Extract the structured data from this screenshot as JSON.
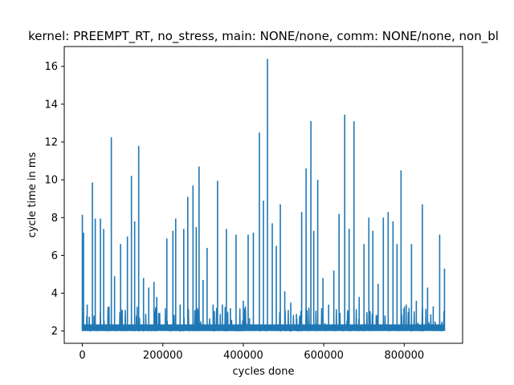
{
  "chart_data": {
    "type": "line",
    "title": "kernel: PREEMPT_RT, no_stress, main: NONE/none, comm: NONE/none, non_bl",
    "xlabel": "cycles done",
    "ylabel": "cycle time in ms",
    "xlim": [
      -45000,
      945000
    ],
    "ylim": [
      1.35,
      17.05
    ],
    "xticks": [
      0,
      200000,
      400000,
      600000,
      800000
    ],
    "xtick_labels": [
      "0",
      "200000",
      "400000",
      "600000",
      "800000"
    ],
    "yticks": [
      2,
      4,
      6,
      8,
      10,
      12,
      14,
      16
    ],
    "ytick_labels": [
      "2",
      "4",
      "6",
      "8",
      "10",
      "12",
      "14",
      "16"
    ],
    "grid": false,
    "series_color": "#1f77b4",
    "series": [
      {
        "name": "cycle time",
        "baseline": 2.0,
        "x_range": [
          0,
          900000
        ],
        "spikes": [
          {
            "x": 0,
            "y": 8.15
          },
          {
            "x": 3000,
            "y": 7.2
          },
          {
            "x": 12000,
            "y": 3.4
          },
          {
            "x": 25000,
            "y": 9.85
          },
          {
            "x": 32000,
            "y": 7.95
          },
          {
            "x": 45000,
            "y": 7.95
          },
          {
            "x": 53000,
            "y": 7.4
          },
          {
            "x": 72000,
            "y": 12.25
          },
          {
            "x": 80000,
            "y": 4.9
          },
          {
            "x": 95000,
            "y": 6.6
          },
          {
            "x": 112000,
            "y": 7.0
          },
          {
            "x": 122000,
            "y": 10.2
          },
          {
            "x": 130000,
            "y": 7.8
          },
          {
            "x": 140000,
            "y": 11.8
          },
          {
            "x": 152000,
            "y": 4.8
          },
          {
            "x": 165000,
            "y": 4.3
          },
          {
            "x": 178000,
            "y": 4.6
          },
          {
            "x": 185000,
            "y": 3.8
          },
          {
            "x": 210000,
            "y": 6.9
          },
          {
            "x": 225000,
            "y": 7.3
          },
          {
            "x": 232000,
            "y": 7.95
          },
          {
            "x": 243000,
            "y": 3.4
          },
          {
            "x": 252000,
            "y": 7.4
          },
          {
            "x": 262000,
            "y": 9.1
          },
          {
            "x": 275000,
            "y": 9.7
          },
          {
            "x": 283000,
            "y": 7.5
          },
          {
            "x": 290000,
            "y": 10.7
          },
          {
            "x": 300000,
            "y": 4.7
          },
          {
            "x": 310000,
            "y": 6.4
          },
          {
            "x": 325000,
            "y": 3.4
          },
          {
            "x": 336000,
            "y": 9.95
          },
          {
            "x": 348000,
            "y": 3.4
          },
          {
            "x": 358000,
            "y": 7.4
          },
          {
            "x": 368000,
            "y": 3.2
          },
          {
            "x": 382000,
            "y": 7.1
          },
          {
            "x": 400000,
            "y": 3.6
          },
          {
            "x": 412000,
            "y": 7.1
          },
          {
            "x": 425000,
            "y": 7.2
          },
          {
            "x": 440000,
            "y": 12.5
          },
          {
            "x": 450000,
            "y": 8.9
          },
          {
            "x": 460000,
            "y": 16.4
          },
          {
            "x": 472000,
            "y": 7.7
          },
          {
            "x": 482000,
            "y": 6.5
          },
          {
            "x": 492000,
            "y": 8.7
          },
          {
            "x": 503000,
            "y": 4.1
          },
          {
            "x": 518000,
            "y": 3.5
          },
          {
            "x": 532000,
            "y": 2.9
          },
          {
            "x": 545000,
            "y": 8.3
          },
          {
            "x": 556000,
            "y": 10.6
          },
          {
            "x": 568000,
            "y": 13.1
          },
          {
            "x": 575000,
            "y": 7.3
          },
          {
            "x": 585000,
            "y": 10.0
          },
          {
            "x": 598000,
            "y": 4.8
          },
          {
            "x": 612000,
            "y": 3.4
          },
          {
            "x": 625000,
            "y": 5.2
          },
          {
            "x": 638000,
            "y": 8.2
          },
          {
            "x": 652000,
            "y": 13.45
          },
          {
            "x": 663000,
            "y": 7.4
          },
          {
            "x": 675000,
            "y": 13.1
          },
          {
            "x": 688000,
            "y": 3.8
          },
          {
            "x": 700000,
            "y": 6.6
          },
          {
            "x": 712000,
            "y": 8.0
          },
          {
            "x": 722000,
            "y": 7.3
          },
          {
            "x": 735000,
            "y": 4.5
          },
          {
            "x": 748000,
            "y": 8.0
          },
          {
            "x": 760000,
            "y": 8.3
          },
          {
            "x": 772000,
            "y": 7.8
          },
          {
            "x": 782000,
            "y": 6.6
          },
          {
            "x": 792000,
            "y": 10.5
          },
          {
            "x": 805000,
            "y": 3.4
          },
          {
            "x": 818000,
            "y": 6.6
          },
          {
            "x": 830000,
            "y": 3.6
          },
          {
            "x": 845000,
            "y": 8.7
          },
          {
            "x": 858000,
            "y": 4.3
          },
          {
            "x": 872000,
            "y": 3.3
          },
          {
            "x": 888000,
            "y": 7.1
          },
          {
            "x": 900000,
            "y": 5.3
          }
        ]
      }
    ]
  }
}
